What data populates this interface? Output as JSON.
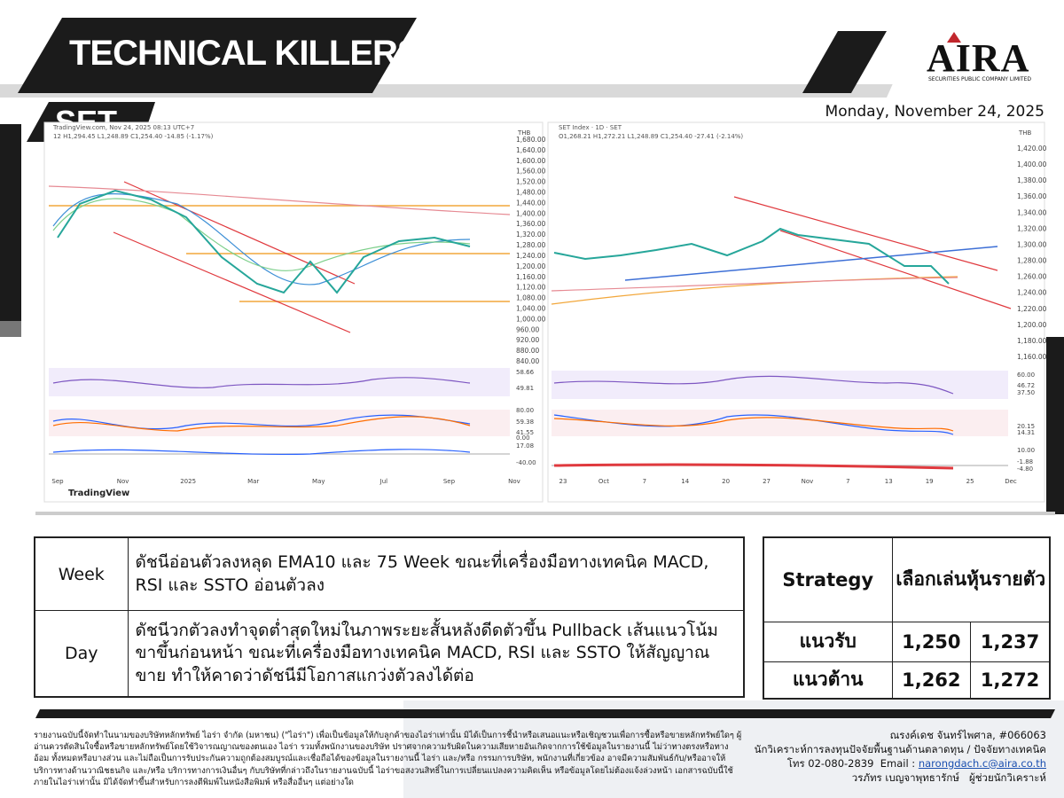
{
  "header": {
    "title": "TECHNICAL KILLERS",
    "market": "SET",
    "date": "Monday, November 24, 2025",
    "logo": {
      "name": "AIRA",
      "tagline": "SECURITIES PUBLIC COMPANY LIMITED"
    }
  },
  "charts": [
    {
      "source": "TradingView.com, Nov 24, 2025 08:13 UTC+7",
      "ohlc": "12  H1,294.45  L1,248.89  C1,254.40  -14.85 (-1.17%)",
      "currency": "THB",
      "price_axis": [
        "1,680.00",
        "1,640.00",
        "1,600.00",
        "1,560.00",
        "1,520.00",
        "1,480.00",
        "1,440.00",
        "1,400.00",
        "1,360.00",
        "1,320.00",
        "1,280.00",
        "1,240.00",
        "1,200.00",
        "1,160.00",
        "1,120.00",
        "1,080.00",
        "1,040.00",
        "1,000.00",
        "960.00",
        "920.00",
        "880.00",
        "840.00"
      ],
      "rsi_axis": [
        "58.66",
        "49.81"
      ],
      "stoch_axis": [
        "80.00",
        "59.38",
        "41.55"
      ],
      "macd_axis": [
        "0.00",
        "17.08",
        "-40.00"
      ],
      "time_axis": [
        "Sep",
        "Nov",
        "2025",
        "Mar",
        "May",
        "Jul",
        "Sep",
        "Nov"
      ],
      "watermark": "TradingView"
    },
    {
      "source": "SET Index · 1D · SET",
      "ohlc": "O1,268.21  H1,272.21  L1,248.89  C1,254.40  -27.41 (-2.14%)",
      "currency": "THB",
      "price_axis": [
        "1,420.00",
        "1,400.00",
        "1,380.00",
        "1,360.00",
        "1,340.00",
        "1,320.00",
        "1,300.00",
        "1,280.00",
        "1,260.00",
        "1,240.00",
        "1,220.00",
        "1,200.00",
        "1,180.00",
        "1,160.00"
      ],
      "rsi_axis": [
        "60.00",
        "46.72",
        "37.50"
      ],
      "stoch_axis": [
        "20.15",
        "14.31"
      ],
      "macd_axis": [
        "10.00",
        "-1.88",
        "-4.80"
      ],
      "time_axis": [
        "23",
        "Oct",
        "7",
        "14",
        "20",
        "27",
        "Nov",
        "7",
        "13",
        "19",
        "25",
        "Dec"
      ]
    }
  ],
  "analysis": {
    "rows": [
      {
        "period": "Week",
        "text": "ดัชนีอ่อนตัวลงหลุด EMA10 และ 75 Week ขณะที่เครื่องมือทางเทคนิค MACD, RSI และ SSTO อ่อนตัวลง"
      },
      {
        "period": "Day",
        "text": "ดัชนีวกตัวลงทำจุดต่ำสุดใหม่ในภาพระยะสั้นหลังดีดตัวขึ้น Pullback เส้นแนวโน้มขาขึ้นก่อนหน้า ขณะที่เครื่องมือทางเทคนิค MACD, RSI และ SSTO ให้สัญญาณขาย ทำให้คาดว่าดัชนีมีโอกาสแกว่งตัวลงได้ต่อ"
      }
    ]
  },
  "strategy": {
    "header": [
      "Strategy",
      "เลือกเล่นหุ้นรายตัว"
    ],
    "rows": [
      [
        "แนวรับ",
        "1,250",
        "1,237"
      ],
      [
        "แนวต้าน",
        "1,262",
        "1,272"
      ]
    ]
  },
  "footer": {
    "disclaimer": "รายงานฉบับนี้จัดทำในนามของบริษัทหลักทรัพย์ ไอร่า จำกัด (มหาชน) (\"ไอร่า\") เพื่อเป็นข้อมูลให้กับลูกค้าของไอร่าเท่านั้น มิได้เป็นการชี้นำหรือเสนอแนะหรือเชิญชวนเพื่อการซื้อหรือขายหลักทรัพย์ใดๆ ผู้อ่านควรตัดสินใจซื้อหรือขายหลักทรัพย์โดยใช้วิจารณญาณของตนเอง ไอร่า รวมทั้งพนักงานของบริษัท ปราศจากความรับผิดในความเสียหายอันเกิดจากการใช้ข้อมูลในรายงานนี้ ไม่ว่าทางตรงหรือทางอ้อม ทั้งหมดหรือบางส่วน และไม่ถือเป็นการรับประกันความถูกต้องสมบูรณ์และเชื่อถือได้ของข้อมูลในรายงานนี้ ไอร่า และ/หรือ กรรมการบริษัท, พนักงานที่เกี่ยวข้อง อาจมีความสัมพันธ์กับ/หรืออาจให้บริการทางด้านวาณิชธนกิจ และ/หรือ บริการทางการเงินอื่นๆ กับบริษัทที่กล่าวถึงในรายงานฉบับนี้ ไอร่าขอสงวนสิทธิ์ในการเปลี่ยนแปลงความคิดเห็น หรือข้อมูลโดยไม่ต้องแจ้งล่วงหน้า เอกสารฉบับนี้ใช้ภายในไอร่าเท่านั้น มิได้จัดทำขึ้นสำหรับการลงตีพิมพ์ในหนังสือพิมพ์ หรือสื่ออื่นๆ แต่อย่างใด",
    "analyst": "ณรงค์เดช จันทร์ไพศาล, #066063",
    "analyst_role": "นักวิเคราะห์การลงทุนปัจจัยพื้นฐานด้านตลาดทุน / ปัจจัยทางเทคนิค",
    "phone": "โทร 02-080-2839",
    "email_label": "Email :",
    "email": "narongdach.c@aira.co.th",
    "assistant": "วรภัทร เบญจาพุทธารักษ์",
    "assistant_role": "ผู้ช่วยนักวิเคราะห์"
  }
}
